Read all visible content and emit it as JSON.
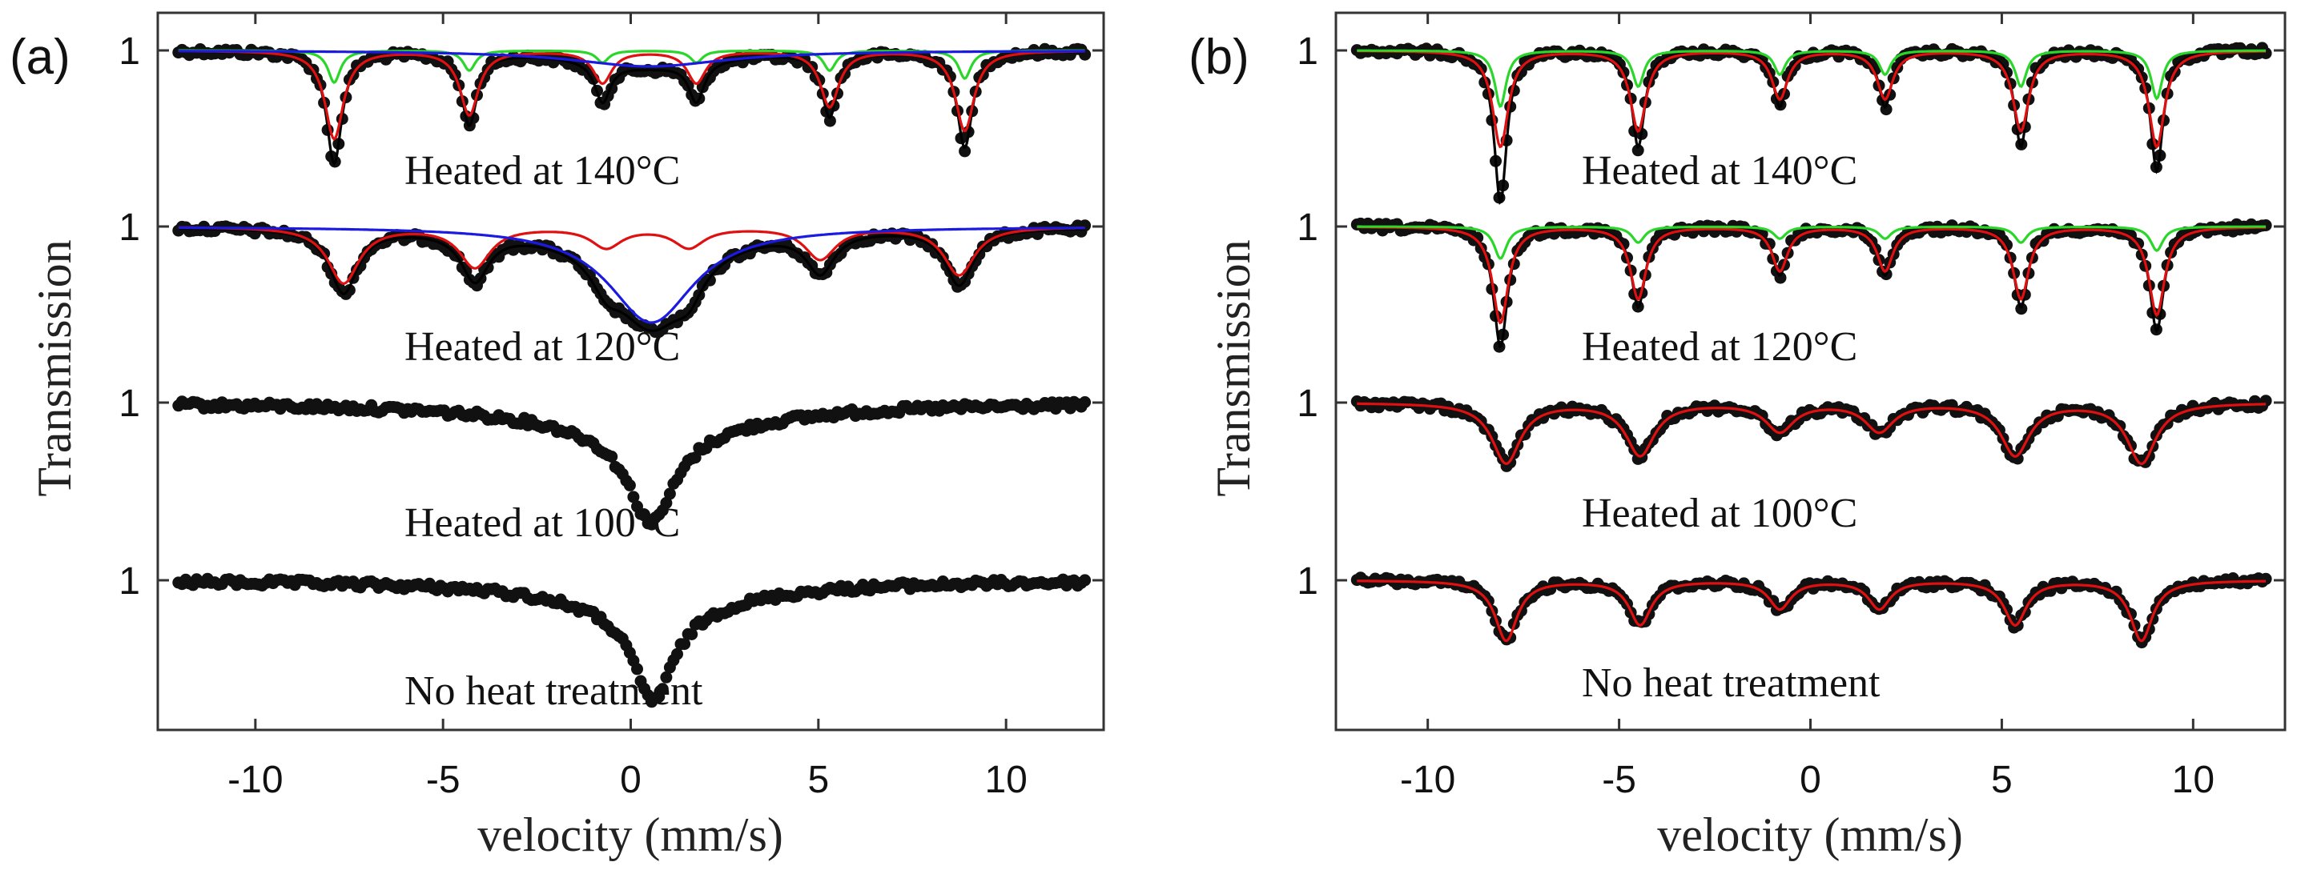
{
  "chart_data": [
    {
      "type": "scatter",
      "panel_label": "(a)",
      "xlabel": "velocity (mm/s)",
      "ylabel": "Transmission",
      "xlim": [
        -12.6,
        12.6
      ],
      "x_ticks": [
        -10,
        -5,
        0,
        5,
        10
      ],
      "x_tick_labels": [
        "-10",
        "-5",
        "0",
        "5",
        "10"
      ],
      "spectra": [
        {
          "label": "Heated at 140°C",
          "baseline_label": "1",
          "points_style": "black dots",
          "fits": [
            {
              "name": "total fit",
              "color": "#000000",
              "components": [
                {
                  "kind": "sextet",
                  "center": 0.45,
                  "splitting": [
                    -8.35,
                    -4.75,
                    -1.2,
                    1.3,
                    4.85,
                    8.45
                  ],
                  "depths": [
                    0.14,
                    0.09,
                    0.05,
                    0.05,
                    0.08,
                    0.12
                  ],
                  "width": 0.25
                },
                {
                  "kind": "singlet",
                  "center": 0.5,
                  "depth": 0.02,
                  "width": 2.0
                }
              ]
            },
            {
              "name": "component 1",
              "color": "#e01010",
              "components": [
                {
                  "kind": "sextet",
                  "center": 0.45,
                  "splitting": [
                    -8.35,
                    -4.75,
                    -1.2,
                    1.3,
                    4.85,
                    8.45
                  ],
                  "depths": [
                    0.11,
                    0.08,
                    0.04,
                    0.04,
                    0.07,
                    0.1
                  ],
                  "width": 0.3
                }
              ]
            },
            {
              "name": "component 2",
              "color": "#2ad62a",
              "components": [
                {
                  "kind": "sextet",
                  "center": 0.45,
                  "splitting": [
                    -8.35,
                    -4.75,
                    -1.2,
                    1.3,
                    4.85,
                    8.45
                  ],
                  "depths": [
                    0.04,
                    0.025,
                    0.015,
                    0.015,
                    0.025,
                    0.035
                  ],
                  "width": 0.2
                }
              ]
            },
            {
              "name": "component 3",
              "color": "#1a1ae0",
              "components": [
                {
                  "kind": "singlet",
                  "center": 0.5,
                  "depth": 0.02,
                  "width": 2.5
                }
              ]
            }
          ]
        },
        {
          "label": "Heated at 120°C",
          "baseline_label": "1",
          "points_style": "black dots",
          "fits": [
            {
              "name": "total fit",
              "color": "#000000",
              "components": [
                {
                  "kind": "sextet",
                  "center": 0.45,
                  "splitting": [
                    -8.1,
                    -4.6,
                    -1.1,
                    1.1,
                    4.6,
                    8.3
                  ],
                  "depths": [
                    0.08,
                    0.06,
                    0.03,
                    0.03,
                    0.05,
                    0.07
                  ],
                  "width": 0.45
                },
                {
                  "kind": "singlet",
                  "center": 0.55,
                  "depth": 0.12,
                  "width": 1.3
                }
              ]
            },
            {
              "name": "component 1",
              "color": "#e01010",
              "components": [
                {
                  "kind": "sextet",
                  "center": 0.45,
                  "splitting": [
                    -8.1,
                    -4.6,
                    -1.1,
                    1.1,
                    4.6,
                    8.3
                  ],
                  "depths": [
                    0.07,
                    0.05,
                    0.025,
                    0.025,
                    0.04,
                    0.06
                  ],
                  "width": 0.5
                }
              ]
            },
            {
              "name": "component 2",
              "color": "#1a1ae0",
              "components": [
                {
                  "kind": "singlet",
                  "center": 0.55,
                  "depth": 0.12,
                  "width": 1.4
                }
              ]
            }
          ]
        },
        {
          "label": "Heated at 100°C",
          "baseline_label": "1",
          "points_style": "black dots",
          "fits": [],
          "data_shape": {
            "components": [
              {
                "kind": "singlet",
                "center": 0.55,
                "depth": 0.115,
                "width": 0.75
              },
              {
                "kind": "singlet",
                "center": 0.55,
                "depth": 0.035,
                "width": 3.5
              }
            ]
          }
        },
        {
          "label": "No heat treatment",
          "baseline_label": "1",
          "points_style": "black dots",
          "fits": [],
          "data_shape": {
            "components": [
              {
                "kind": "singlet",
                "center": 0.6,
                "depth": 0.115,
                "width": 0.65
              },
              {
                "kind": "singlet",
                "center": 0.6,
                "depth": 0.035,
                "width": 3.0
              }
            ]
          }
        }
      ]
    },
    {
      "type": "scatter",
      "panel_label": "(b)",
      "xlabel": "velocity (mm/s)",
      "ylabel": "Transmission",
      "xlim": [
        -12.4,
        12.4
      ],
      "x_ticks": [
        -10,
        -5,
        0,
        5,
        10
      ],
      "x_tick_labels": [
        "-10",
        "-5",
        "0",
        "5",
        "10"
      ],
      "spectra": [
        {
          "label": "Heated at 140°C",
          "baseline_label": "1",
          "points_style": "black dots",
          "fits": [
            {
              "name": "total fit",
              "color": "#000000",
              "components": [
                {
                  "kind": "sextet",
                  "center": 0.5,
                  "splitting": [
                    -8.6,
                    -5.0,
                    -1.3,
                    1.45,
                    5.0,
                    8.55
                  ],
                  "depths": [
                    0.19,
                    0.12,
                    0.07,
                    0.07,
                    0.12,
                    0.15
                  ],
                  "width": 0.2
                }
              ]
            },
            {
              "name": "component 1",
              "color": "#e01010",
              "components": [
                {
                  "kind": "sextet",
                  "center": 0.5,
                  "splitting": [
                    -8.6,
                    -5.0,
                    -1.3,
                    1.45,
                    5.0,
                    8.55
                  ],
                  "depths": [
                    0.12,
                    0.1,
                    0.06,
                    0.06,
                    0.1,
                    0.12
                  ],
                  "width": 0.25
                }
              ]
            },
            {
              "name": "component 2",
              "color": "#2ad62a",
              "components": [
                {
                  "kind": "sextet",
                  "center": 0.5,
                  "splitting": [
                    -8.6,
                    -5.0,
                    -1.3,
                    1.45,
                    5.0,
                    8.55
                  ],
                  "depths": [
                    0.07,
                    0.045,
                    0.03,
                    0.03,
                    0.045,
                    0.06
                  ],
                  "width": 0.18
                }
              ]
            }
          ]
        },
        {
          "label": "Heated at 120°C",
          "baseline_label": "1",
          "points_style": "black dots",
          "fits": [
            {
              "name": "total fit",
              "color": "#000000",
              "components": [
                {
                  "kind": "sextet",
                  "center": 0.5,
                  "splitting": [
                    -8.6,
                    -5.0,
                    -1.3,
                    1.45,
                    5.0,
                    8.55
                  ],
                  "depths": [
                    0.15,
                    0.1,
                    0.06,
                    0.06,
                    0.1,
                    0.13
                  ],
                  "width": 0.22
                }
              ]
            },
            {
              "name": "component 1",
              "color": "#e01010",
              "components": [
                {
                  "kind": "sextet",
                  "center": 0.5,
                  "splitting": [
                    -8.6,
                    -5.0,
                    -1.3,
                    1.45,
                    5.0,
                    8.55
                  ],
                  "depths": [
                    0.12,
                    0.09,
                    0.055,
                    0.055,
                    0.09,
                    0.11
                  ],
                  "width": 0.25
                }
              ]
            },
            {
              "name": "component 2",
              "color": "#2ad62a",
              "components": [
                {
                  "kind": "sextet",
                  "center": 0.5,
                  "splitting": [
                    -8.6,
                    -5.0,
                    -1.3,
                    1.45,
                    5.0,
                    8.55
                  ],
                  "depths": [
                    0.04,
                    0.02,
                    0.015,
                    0.015,
                    0.02,
                    0.03
                  ],
                  "width": 0.2
                }
              ]
            }
          ]
        },
        {
          "label": "Heated at 100°C",
          "baseline_label": "1",
          "points_style": "black dots",
          "fits": [
            {
              "name": "fit",
              "color": "#e01010",
              "components": [
                {
                  "kind": "sextet",
                  "center": 0.35,
                  "splitting": [
                    -8.3,
                    -4.8,
                    -1.15,
                    1.45,
                    5.0,
                    8.3
                  ],
                  "depths": [
                    0.075,
                    0.065,
                    0.035,
                    0.035,
                    0.065,
                    0.075
                  ],
                  "width": 0.45
                }
              ]
            }
          ]
        },
        {
          "label": "No heat treatment",
          "baseline_label": "1",
          "points_style": "black dots",
          "fits": [
            {
              "name": "fit",
              "color": "#e01010",
              "components": [
                {
                  "kind": "sextet",
                  "center": 0.35,
                  "splitting": [
                    -8.3,
                    -4.8,
                    -1.15,
                    1.45,
                    5.0,
                    8.3
                  ],
                  "depths": [
                    0.075,
                    0.055,
                    0.035,
                    0.035,
                    0.055,
                    0.075
                  ],
                  "width": 0.35
                }
              ]
            }
          ]
        }
      ]
    }
  ]
}
